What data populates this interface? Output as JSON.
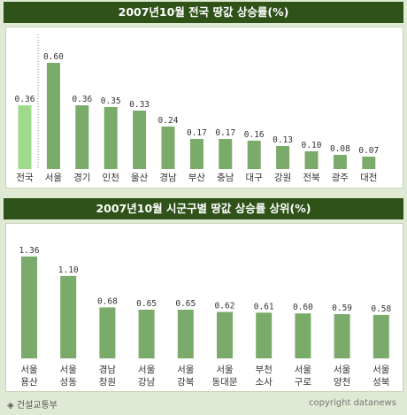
{
  "chart_data": [
    {
      "type": "bar",
      "title": "2007년10월 전국 땅값 상승률(%)",
      "categories": [
        "전국",
        "서울",
        "경기",
        "인천",
        "울산",
        "경남",
        "부산",
        "충남",
        "대구",
        "강원",
        "전북",
        "광주",
        "대전"
      ],
      "values": [
        0.36,
        0.6,
        0.36,
        0.35,
        0.33,
        0.24,
        0.17,
        0.17,
        0.16,
        0.13,
        0.1,
        0.08,
        0.07
      ],
      "value_labels": [
        "0.36",
        "0.60",
        "0.36",
        "0.35",
        "0.33",
        "0.24",
        "0.17",
        "0.17",
        "0.16",
        "0.13",
        "0.10",
        "0.08",
        "0.07"
      ],
      "highlight_index": 0,
      "ylim": [
        0,
        0.7
      ],
      "grid": false,
      "colors": {
        "bar": "#7aab6a",
        "highlight": "#9fd98a"
      }
    },
    {
      "type": "bar",
      "title": "2007년10월 시군구별 땅값 상승률 상위(%)",
      "categories": [
        [
          "서울",
          "용산"
        ],
        [
          "서울",
          "성동"
        ],
        [
          "경남",
          "창원"
        ],
        [
          "서울",
          "강남"
        ],
        [
          "서울",
          "강북"
        ],
        [
          "서울",
          "동대문"
        ],
        [
          "부천",
          "소사"
        ],
        [
          "서울",
          "구로"
        ],
        [
          "서울",
          "양천"
        ],
        [
          "서울",
          "성북"
        ]
      ],
      "values": [
        1.36,
        1.1,
        0.68,
        0.65,
        0.65,
        0.62,
        0.61,
        0.6,
        0.59,
        0.58
      ],
      "value_labels": [
        "1.36",
        "1.10",
        "0.68",
        "0.65",
        "0.65",
        "0.62",
        "0.61",
        "0.60",
        "0.59",
        "0.58"
      ],
      "ylim": [
        0,
        1.5
      ],
      "grid": false,
      "colors": {
        "bar": "#7aab6a"
      }
    }
  ],
  "footer": {
    "source": "◈ 건설교통부",
    "copyright": "copyright datanews"
  }
}
